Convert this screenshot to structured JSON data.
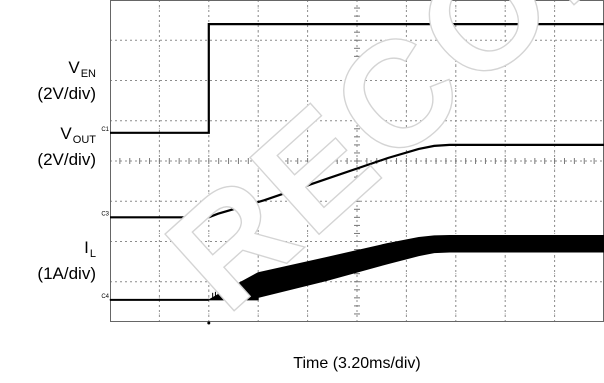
{
  "chart_data": {
    "type": "line",
    "title": "",
    "xlabel": "Time (3.20ms/div)",
    "x_unit": "ms",
    "x_per_div": 3.2,
    "x_divisions": 10,
    "xlim": [
      0,
      32
    ],
    "grid": true,
    "watermark": "RECOMMENDED",
    "series": [
      {
        "name": "V",
        "subscript": "EN",
        "scale": "(2V/div)",
        "marker": "C1",
        "color": "#000000",
        "x": [
          0,
          6.4,
          6.4,
          32
        ],
        "y": [
          0,
          0,
          5.4,
          5.4
        ],
        "offset_div": 4.7
      },
      {
        "name": "V",
        "subscript": "OUT",
        "scale": "(2V/div)",
        "marker": "C3",
        "color": "#000000",
        "x": [
          0,
          6.4,
          7.0,
          10,
          14,
          18,
          20,
          21,
          22,
          32
        ],
        "y": [
          0,
          0,
          0.18,
          0.85,
          1.9,
          2.95,
          3.4,
          3.55,
          3.6,
          3.6
        ],
        "offset_div": 2.6
      },
      {
        "name": "I",
        "subscript": "L",
        "scale": "(1A/div)",
        "marker": "C4",
        "color": "#000000",
        "x": [
          0,
          6.4,
          7.2,
          9.6,
          9.6,
          14,
          18,
          20,
          21,
          22,
          32
        ],
        "y_low": [
          0,
          0,
          0,
          0,
          0.12,
          0.95,
          1.8,
          2.2,
          2.35,
          2.38,
          2.38
        ],
        "y_high": [
          0,
          0,
          0.35,
          1.35,
          1.35,
          2.1,
          2.8,
          3.1,
          3.18,
          3.2,
          3.2
        ],
        "offset_div": 0.55
      }
    ]
  }
}
